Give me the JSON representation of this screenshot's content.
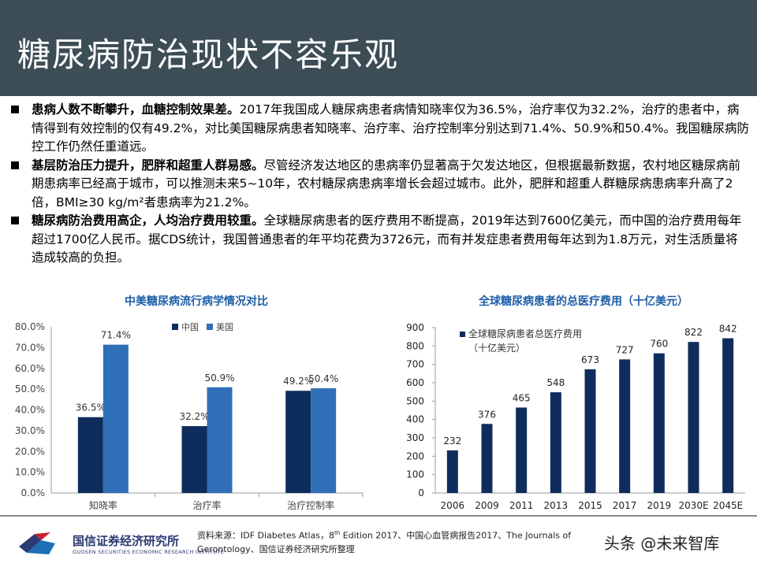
{
  "slide": {
    "title": "糖尿病防治现状不容乐观"
  },
  "bullets": [
    {
      "bold": "患病人数不断攀升，血糖控制效果差。",
      "text": "2017年我国成人糖尿病患者病情知晓率仅为36.5%，治疗率仅为32.2%，治疗的患者中，病情得到有效控制的仅有49.2%，对比美国糖尿病患者知晓率、治疗率、治疗控制率分别达到71.4%、50.9%和50.4%。我国糖尿病防控工作仍然任重道远。"
    },
    {
      "bold": "基层防治压力提升，肥胖和超重人群易感。",
      "text": "尽管经济发达地区的患病率仍显著高于欠发达地区，但根据最新数据，农村地区糖尿病前期患病率已经高于城市，可以推测未来5~10年，农村糖尿病患病率增长会超过城市。此外，肥胖和超重人群糖尿病患病率升高了2倍，BMI≥30 kg/m²者患病率为21.2%。"
    },
    {
      "bold": "糖尿病防治费用高企，人均治疗费用较重。",
      "text": "全球糖尿病患者的医疗费用不断提高，2019年达到7600亿美元，而中国的治疗费用每年超过1700亿人民币。据CDS统计，我国普通患者的年平均花费为3726元，而有并发症患者费用每年达到为1.8万元，对生活质量将造成较高的负担。"
    }
  ],
  "chart_data": [
    {
      "type": "bar",
      "title": "中美糖尿病流行病学情况对比",
      "categories": [
        "知晓率",
        "治疗率",
        "治疗控制率"
      ],
      "series": [
        {
          "name": "中国",
          "values": [
            36.5,
            32.2,
            49.2
          ],
          "labels": [
            "36.5%",
            "32.2%",
            "49.2%"
          ],
          "color": "#0f2d5c"
        },
        {
          "name": "美国",
          "values": [
            71.4,
            50.9,
            50.4
          ],
          "labels": [
            "71.4%",
            "50.9%",
            "50.4%"
          ],
          "color": "#2f6fb7"
        }
      ],
      "ylim": [
        0,
        80
      ],
      "yticks": [
        "0.0%",
        "10.0%",
        "20.0%",
        "30.0%",
        "40.0%",
        "50.0%",
        "60.0%",
        "70.0%",
        "80.0%"
      ],
      "legend": "top-center"
    },
    {
      "type": "bar",
      "title": "全球糖尿病患者的总医疗费用（十亿美元）",
      "categories": [
        "2006",
        "2009",
        "2011",
        "2013",
        "2015",
        "2017",
        "2019",
        "2030E",
        "2045E"
      ],
      "series": [
        {
          "name": "全球糖尿病患者总医疗费用（十亿美元）",
          "values": [
            232,
            376,
            465,
            548,
            673,
            727,
            760,
            822,
            842
          ],
          "color": "#0f2d5c"
        }
      ],
      "ylim": [
        0,
        900
      ],
      "yticks": [
        "0",
        "100",
        "200",
        "300",
        "400",
        "500",
        "600",
        "700",
        "800",
        "900"
      ],
      "legend": "top-left"
    }
  ],
  "legend2": {
    "line1": "全球糖尿病患者总医疗费用",
    "line2": "（十亿美元）"
  },
  "footer": {
    "logo_cn": "国信证券经济研究所",
    "logo_en": "GUOSEN SECURITIES ECONOMIC RESEARCH INSTITUTE",
    "source_a": "资料来源：IDF Diabetes Atlas，8",
    "source_sup": "th",
    "source_b": " Edition 2017、中国心血管病报告2017、The Journals of",
    "source_c": "Gerontology、国信证券经济研究所整理",
    "watermark": "头条 @未来智库"
  },
  "colors": {
    "title_bg": "#3d4d55",
    "chart_title": "#1f5ea8",
    "china": "#0f2d5c",
    "usa": "#2f6fb7"
  }
}
